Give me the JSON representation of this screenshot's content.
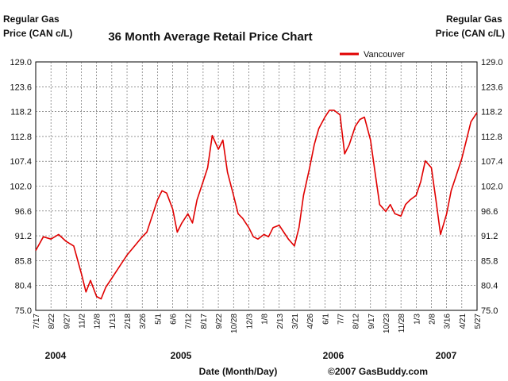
{
  "chart_data": {
    "type": "line",
    "title": "36 Month Average Retail Price Chart",
    "ylabel_left": "Regular Gas\nPrice (CAN c/L)",
    "ylabel_right": "Regular Gas\nPrice (CAN c/L)",
    "xlabel": "Date (Month/Day)",
    "credit": "©2007 GasBuddy.com",
    "ylim": [
      75.0,
      129.0
    ],
    "y_ticks": [
      "129.0",
      "123.6",
      "118.2",
      "112.8",
      "107.4",
      "102.0",
      "96.6",
      "91.2",
      "85.8",
      "80.4",
      "75.0"
    ],
    "x_ticks": [
      "7/17",
      "8/22",
      "9/27",
      "11/2",
      "12/8",
      "1/13",
      "2/18",
      "3/26",
      "5/1",
      "6/6",
      "7/12",
      "8/17",
      "9/22",
      "10/28",
      "12/3",
      "1/8",
      "2/13",
      "3/21",
      "4/26",
      "6/1",
      "7/7",
      "8/12",
      "9/17",
      "10/23",
      "11/28",
      "1/3",
      "2/8",
      "3/16",
      "4/21",
      "5/27"
    ],
    "years": [
      "2004",
      "2005",
      "2006",
      "2007"
    ],
    "grid": true,
    "legend_position": "top-right",
    "series": [
      {
        "name": "Vancouver",
        "color": "#e00000",
        "x": [
          0.0,
          0.5,
          1.0,
          1.5,
          2.0,
          2.5,
          3.0,
          3.3,
          3.6,
          4.0,
          4.3,
          4.6,
          5.0,
          5.5,
          6.0,
          6.5,
          7.0,
          7.3,
          7.6,
          8.0,
          8.3,
          8.6,
          9.0,
          9.3,
          9.6,
          10.0,
          10.3,
          10.6,
          11.0,
          11.3,
          11.6,
          12.0,
          12.3,
          12.6,
          13.0,
          13.3,
          13.6,
          14.0,
          14.3,
          14.6,
          15.0,
          15.3,
          15.6,
          16.0,
          16.3,
          16.6,
          17.0,
          17.3,
          17.6,
          18.0,
          18.3,
          18.6,
          19.0,
          19.3,
          19.6,
          20.0,
          20.3,
          20.6,
          21.0,
          21.3,
          21.6,
          22.0,
          22.3,
          22.6,
          23.0,
          23.3,
          23.6,
          24.0,
          24.3,
          24.6,
          25.0,
          25.3,
          25.6,
          26.0,
          26.3,
          26.6,
          27.0,
          27.3,
          27.6,
          28.0,
          28.3,
          28.6,
          29.0
        ],
        "values": [
          88.0,
          91.0,
          90.5,
          91.5,
          90.0,
          89.0,
          83.0,
          79.0,
          81.5,
          78.0,
          77.5,
          80.0,
          82.0,
          84.5,
          87.0,
          89.0,
          91.0,
          92.0,
          95.0,
          99.0,
          101.0,
          100.5,
          97.0,
          92.0,
          94.0,
          96.0,
          94.0,
          99.0,
          103.0,
          106.0,
          113.0,
          110.0,
          112.0,
          105.0,
          100.0,
          96.0,
          95.0,
          93.0,
          91.0,
          90.5,
          91.5,
          91.0,
          93.0,
          93.5,
          92.0,
          90.5,
          89.0,
          93.0,
          100.0,
          106.0,
          111.0,
          114.5,
          117.0,
          118.5,
          118.5,
          117.5,
          109.0,
          111.0,
          115.0,
          116.5,
          117.0,
          112.0,
          105.0,
          98.0,
          96.5,
          98.0,
          96.0,
          95.5,
          98.0,
          99.0,
          100.0,
          103.0,
          107.5,
          106.0,
          99.0,
          91.5,
          96.0,
          101.0,
          104.0,
          108.0,
          112.0,
          116.0,
          118.0
        ]
      }
    ]
  }
}
